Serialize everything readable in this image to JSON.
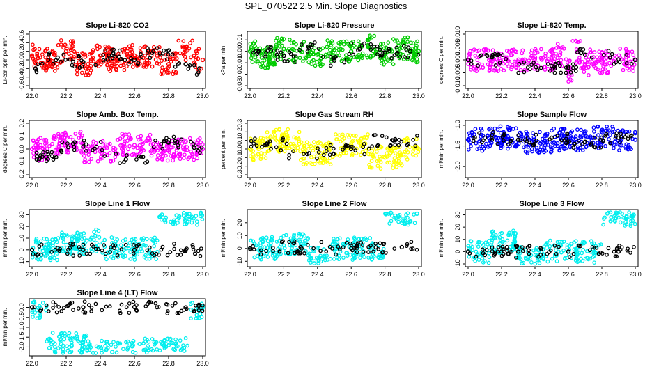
{
  "title": "SPL_070522  2.5 Min. Slope Diagnostics",
  "colors": {
    "red": "#ff0000",
    "green": "#00cc00",
    "magenta": "#ff00ff",
    "yellow": "#ffff00",
    "blue": "#0000ff",
    "cyan": "#00eeee",
    "black": "#000000"
  },
  "chart_data": [
    {
      "type": "scatter",
      "title": "Slope Li-820 CO2",
      "ylabel": "Li-cor ppm per min.",
      "xlabel": "",
      "xlim": [
        22.0,
        23.0
      ],
      "ylim": [
        -0.6,
        0.6
      ],
      "xticks": [
        "22.0",
        "22.2",
        "22.4",
        "22.6",
        "22.8",
        "23.0"
      ],
      "yticks": [
        "-0.6",
        "-0.4",
        "-0.2",
        "0.0",
        "0.2",
        "0.4",
        "0.6"
      ],
      "series": [
        {
          "color": "red",
          "x": [
            22.0,
            22.1,
            22.2,
            22.3,
            22.4,
            22.5,
            22.6,
            22.7,
            22.8,
            22.9,
            23.0
          ],
          "y": [
            0.1,
            0.0,
            0.2,
            -0.1,
            0.1,
            0.0,
            0.1,
            0.1,
            -0.1,
            0.2,
            0.0
          ]
        },
        {
          "color": "black",
          "x": [
            22.02,
            22.15,
            22.3,
            22.45,
            22.6,
            22.75,
            22.9,
            22.98
          ],
          "y": [
            -0.2,
            0.05,
            -0.05,
            0.1,
            0.0,
            0.15,
            -0.1,
            -0.2
          ]
        }
      ]
    },
    {
      "type": "scatter",
      "title": "Slope Li-820 Pressure",
      "ylabel": "kPa per min.",
      "xlabel": "",
      "xlim": [
        22.0,
        23.0
      ],
      "ylim": [
        -0.03,
        0.015
      ],
      "xticks": [
        "22.0",
        "22.2",
        "22.4",
        "22.6",
        "22.8",
        "23.0"
      ],
      "yticks": [
        "-0.03",
        "-0.02",
        "-0.01",
        "0.00",
        "0.01"
      ],
      "series": [
        {
          "color": "green",
          "x": [
            22.0,
            22.1,
            22.2,
            22.3,
            22.4,
            22.5,
            22.6,
            22.7,
            22.8,
            22.9,
            23.0
          ],
          "y": [
            0.0,
            -0.005,
            0.002,
            0.0,
            -0.003,
            0.001,
            0.0,
            0.004,
            -0.002,
            0.003,
            0.0
          ],
          "outliers": []
        },
        {
          "color": "black",
          "x": [
            22.05,
            22.2,
            22.35,
            22.5,
            22.65,
            22.8,
            22.95
          ],
          "y": [
            0.0,
            -0.004,
            0.003,
            -0.008,
            0.002,
            -0.001,
            0.0
          ]
        }
      ]
    },
    {
      "type": "scatter",
      "title": "Slope Li-820 Temp.",
      "ylabel": "degrees C per min.",
      "xlabel": "",
      "xlim": [
        22.0,
        23.0
      ],
      "ylim": [
        -0.01,
        0.01
      ],
      "xticks": [
        "22.0",
        "22.2",
        "22.4",
        "22.6",
        "22.8",
        "23.0"
      ],
      "yticks": [
        "-0.010",
        "-0.005",
        "0.000",
        "0.005",
        "0.010"
      ],
      "series": [
        {
          "color": "magenta",
          "x": [
            22.0,
            22.5,
            22.55,
            22.6,
            22.65,
            22.7,
            22.75,
            22.8,
            23.0
          ],
          "y": [
            0.0,
            0.0,
            0.002,
            -0.004,
            0.003,
            -0.002,
            0.001,
            -0.001,
            0.0
          ]
        },
        {
          "color": "black",
          "x": [
            22.0,
            22.6,
            22.7,
            23.0
          ],
          "y": [
            0.0,
            -0.003,
            0.002,
            0.0
          ]
        }
      ]
    },
    {
      "type": "scatter",
      "title": "Slope Amb. Box Temp.",
      "ylabel": "degrees C per min.",
      "xlabel": "",
      "xlim": [
        22.0,
        23.0
      ],
      "ylim": [
        -0.2,
        0.2
      ],
      "xticks": [
        "22.0",
        "22.2",
        "22.4",
        "22.6",
        "22.8",
        "23.0"
      ],
      "yticks": [
        "-0.2",
        "-0.1",
        "0.0",
        "0.1",
        "0.2"
      ],
      "series": [
        {
          "color": "magenta",
          "x": [
            22.0,
            22.2,
            22.4,
            22.6,
            22.8,
            23.0
          ],
          "y": [
            0.0,
            0.05,
            -0.02,
            0.03,
            -0.01,
            0.0
          ]
        },
        {
          "color": "black",
          "x": [
            22.05,
            22.3,
            22.55,
            22.8,
            22.95
          ],
          "y": [
            -0.05,
            0.02,
            -0.08,
            0.05,
            0.01
          ]
        }
      ]
    },
    {
      "type": "scatter",
      "title": "Slope Gas Stream RH",
      "ylabel": "percent per min.",
      "xlabel": "",
      "xlim": [
        22.0,
        23.0
      ],
      "ylim": [
        -0.3,
        0.3
      ],
      "xticks": [
        "22.0",
        "22.2",
        "22.4",
        "22.6",
        "22.8",
        "23.0"
      ],
      "yticks": [
        "-0.3",
        "-0.2",
        "-0.1",
        "0.0",
        "0.1",
        "0.2",
        "0.3"
      ],
      "series": [
        {
          "color": "yellow",
          "x": [
            22.0,
            22.2,
            22.4,
            22.6,
            22.8,
            23.0
          ],
          "y": [
            0.0,
            0.1,
            -0.05,
            0.05,
            -0.1,
            0.0
          ]
        },
        {
          "color": "black",
          "x": [
            22.1,
            22.35,
            22.6,
            22.85
          ],
          "y": [
            0.05,
            -0.05,
            0.0,
            0.1
          ]
        }
      ]
    },
    {
      "type": "scatter",
      "title": "Slope Sample Flow",
      "ylabel": "ml/min per min.",
      "xlabel": "",
      "xlim": [
        22.0,
        23.0
      ],
      "ylim": [
        -2.2,
        -0.95
      ],
      "xticks": [
        "22.0",
        "22.2",
        "22.4",
        "22.6",
        "22.8",
        "23.0"
      ],
      "yticks": [
        "-2.0",
        "-1.5",
        "-1.0"
      ],
      "series": [
        {
          "color": "blue",
          "x": [
            22.0,
            22.2,
            22.4,
            22.6,
            22.8,
            23.0
          ],
          "y": [
            -1.35,
            -1.3,
            -1.4,
            -1.35,
            -1.3,
            -1.35
          ]
        },
        {
          "color": "black",
          "x": [
            22.1,
            22.3,
            22.5,
            22.7,
            22.9
          ],
          "y": [
            -1.3,
            -1.35,
            -1.3,
            -1.4,
            -1.3
          ]
        }
      ]
    },
    {
      "type": "scatter",
      "title": "Slope Line 1 Flow",
      "ylabel": "ml/min per min.",
      "xlabel": "",
      "xlim": [
        22.0,
        23.0
      ],
      "ylim": [
        -12,
        32
      ],
      "xticks": [
        "22.0",
        "22.2",
        "22.4",
        "22.6",
        "22.8",
        "23.0"
      ],
      "yticks": [
        "-10",
        "0",
        "10",
        "20",
        "30"
      ],
      "series": [
        {
          "color": "cyan",
          "x": [
            22.0,
            22.3,
            22.32,
            22.5,
            22.99
          ],
          "y": [
            0,
            5,
            8,
            1,
            31
          ]
        },
        {
          "color": "black",
          "x": [
            22.0,
            22.3,
            22.6,
            22.9
          ],
          "y": [
            0,
            0,
            0,
            0
          ]
        }
      ]
    },
    {
      "type": "scatter",
      "title": "Slope Line 2 Flow",
      "ylabel": "ml/min per min.",
      "xlabel": "",
      "xlim": [
        22.0,
        23.0
      ],
      "ylim": [
        -12,
        28
      ],
      "xticks": [
        "22.0",
        "22.2",
        "22.4",
        "22.6",
        "22.8",
        "23.0"
      ],
      "yticks": [
        "-10",
        "0",
        "10",
        "20"
      ],
      "series": [
        {
          "color": "cyan",
          "x": [
            22.0,
            22.33,
            22.36,
            22.6,
            22.99
          ],
          "y": [
            0,
            4,
            -8,
            0,
            27
          ]
        },
        {
          "color": "black",
          "x": [
            22.0,
            22.3,
            22.6,
            22.9
          ],
          "y": [
            0,
            1,
            0,
            1
          ]
        }
      ]
    },
    {
      "type": "scatter",
      "title": "Slope Line 3 Flow",
      "ylabel": "ml/min per min.",
      "xlabel": "",
      "xlim": [
        22.0,
        23.0
      ],
      "ylim": [
        -10,
        32
      ],
      "xticks": [
        "22.0",
        "22.2",
        "22.4",
        "22.6",
        "22.8",
        "23.0"
      ],
      "yticks": [
        "-10",
        "0",
        "10",
        "20",
        "30"
      ],
      "series": [
        {
          "color": "cyan",
          "x": [
            22.0,
            22.28,
            22.3,
            22.6,
            22.99
          ],
          "y": [
            0,
            8,
            -5,
            0,
            30
          ]
        },
        {
          "color": "black",
          "x": [
            22.0,
            22.3,
            22.6,
            22.9
          ],
          "y": [
            0,
            0,
            0,
            0
          ]
        }
      ]
    },
    {
      "type": "scatter",
      "title": "Slope Line 4 (LT) Flow",
      "ylabel": "ml/min per min.",
      "xlabel": "",
      "xlim": [
        22.0,
        23.0
      ],
      "ylim": [
        -2.3,
        0.3
      ],
      "xticks": [
        "22.0",
        "22.2",
        "22.4",
        "22.6",
        "22.8",
        "23.0"
      ],
      "yticks": [
        "-2.0",
        "-1.5",
        "-1.0",
        "-0.5",
        "0.0"
      ],
      "series": [
        {
          "color": "cyan",
          "x": [
            22.0,
            22.17,
            22.47,
            22.83,
            23.0
          ],
          "y": [
            0.0,
            -1.85,
            -2.25,
            -2.1,
            0.0
          ]
        },
        {
          "color": "black",
          "x": [
            22.0,
            22.3,
            22.6,
            22.9
          ],
          "y": [
            0.0,
            0.0,
            0.02,
            0.0
          ]
        }
      ]
    }
  ]
}
